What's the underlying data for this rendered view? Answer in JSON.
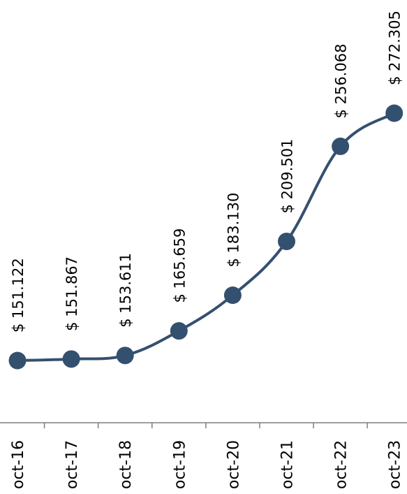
{
  "chart_data": {
    "type": "line",
    "title": "",
    "xlabel": "",
    "ylabel": "",
    "categories": [
      "oct-16",
      "oct-17",
      "oct-18",
      "oct-19",
      "oct-20",
      "oct-21",
      "oct-22",
      "oct-23"
    ],
    "series": [
      {
        "values": [
          151.122,
          151.867,
          153.611,
          165.659,
          183.13,
          209.501,
          256.068,
          272.305
        ],
        "labels": [
          "$ 151.122",
          "$ 151.867",
          "$ 153.611",
          "$ 165.659",
          "$ 183.130",
          "$ 209.501",
          "$ 256.068",
          "$ 272.305"
        ],
        "color": "#34506f"
      }
    ],
    "grid": false,
    "legend": "none",
    "smooth": true,
    "orientation": "rotated-90-clockwise"
  }
}
